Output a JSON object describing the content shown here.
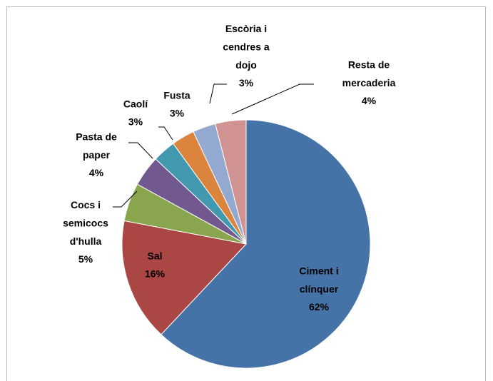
{
  "chart_data": {
    "type": "pie",
    "categories": [
      "Ciment i clínquer",
      "Sal",
      "Cocs i semicocs d'hulla",
      "Pasta de paper",
      "Caolí",
      "Fusta",
      "Escòria i cendres a dojo",
      "Resta de mercaderia"
    ],
    "values": [
      62,
      16,
      5,
      4,
      3,
      3,
      3,
      4
    ],
    "value_labels": [
      "62%",
      "16%",
      "5%",
      "4%",
      "3%",
      "3%",
      "3%",
      "4%"
    ],
    "colors": [
      "#4572A7",
      "#AA4643",
      "#89A54E",
      "#71588F",
      "#4198AF",
      "#DB843D",
      "#93A9CF",
      "#D19392"
    ]
  }
}
